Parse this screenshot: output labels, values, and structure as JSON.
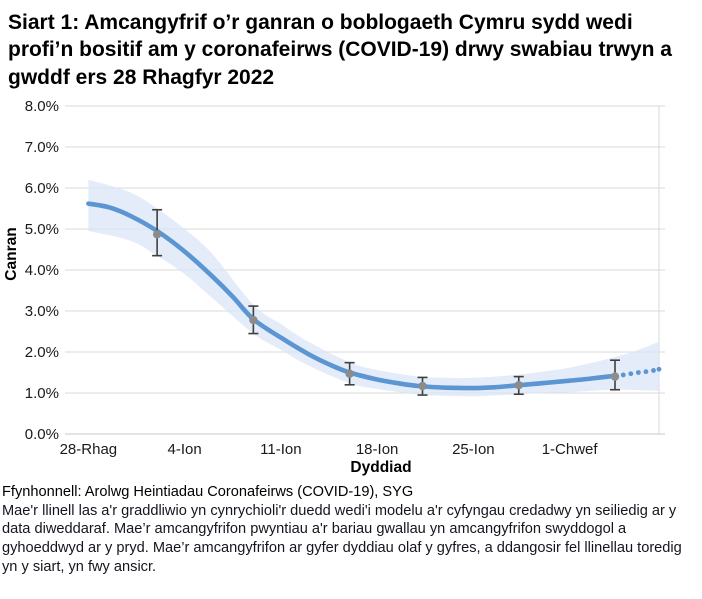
{
  "title": "Siart 1: Amcangyfrif o’r ganran o boblogaeth Cymru sydd wedi profi’n bositif am y coronafeirws (COVID-19) drwy swabiau trwyn a gwddf ers 28 Rhagfyr 2022",
  "footer": {
    "source": "Ffynhonnell: Arolwg Heintiadau Coronafeirws (COVID-19), SYG",
    "note": "Mae'r llinell las a'r graddliwio yn cynrychioli'r duedd wedi'i modelu a'r cyfyngau credadwy yn seiliedig ar y data diweddaraf. Mae’r amcangyfrifon pwyntiau a'r bariau gwallau yn amcangyfrifon swyddogol a gyhoeddwyd ar y pryd. Mae’r amcangyfrifon ar gyfer dyddiau olaf y gyfres, a ddangosir fel llinellau toredig yn y siart, yn fwy ansicr."
  },
  "chart_data": {
    "type": "line",
    "title": "Siart 1: Amcangyfrif o’r ganran o boblogaeth Cymru sydd wedi profi’n bositif am y coronafeirws (COVID-19) drwy swabiau trwyn a gwddf ers 28 Rhagfyr 2022",
    "xlabel": "Dyddiad",
    "ylabel": "Canran",
    "ylim": [
      0,
      8
    ],
    "y_tick_labels": [
      "0.0%",
      "1.0%",
      "2.0%",
      "3.0%",
      "4.0%",
      "5.0%",
      "6.0%",
      "7.0%",
      "8.0%"
    ],
    "x_tick_labels": [
      "28-Rhag",
      "4-Ion",
      "11-Ion",
      "18-Ion",
      "25-Ion",
      "1-Chwef"
    ],
    "x_tick_days": [
      0,
      7,
      14,
      21,
      28,
      35
    ],
    "x_domain_days": [
      -1.7,
      41.5
    ],
    "grid": "horizontal",
    "legend": "none",
    "trend": {
      "x_days": [
        0,
        1.5,
        3,
        5,
        7,
        9,
        10.5,
        12,
        14,
        16,
        17.5,
        19,
        21,
        22.5,
        24,
        26,
        28,
        29.5,
        31,
        33,
        35,
        36.5,
        38.3
      ],
      "values": [
        5.62,
        5.53,
        5.33,
        4.95,
        4.45,
        3.85,
        3.35,
        2.8,
        2.35,
        1.95,
        1.7,
        1.5,
        1.33,
        1.24,
        1.17,
        1.13,
        1.12,
        1.14,
        1.18,
        1.24,
        1.3,
        1.35,
        1.42
      ]
    },
    "dotted_extension": {
      "x_days": [
        38.9,
        39.45,
        40.0,
        40.55,
        41.1,
        41.5
      ],
      "values": [
        1.44,
        1.47,
        1.5,
        1.52,
        1.55,
        1.58
      ]
    },
    "credible_band": {
      "x_days": [
        0,
        3,
        5,
        7,
        9,
        12,
        14,
        16,
        19,
        21,
        24,
        26,
        28,
        31,
        33,
        35,
        38,
        40,
        41.5
      ],
      "upper": [
        6.2,
        5.9,
        5.5,
        5.0,
        4.4,
        3.15,
        2.68,
        2.25,
        1.75,
        1.56,
        1.4,
        1.37,
        1.37,
        1.44,
        1.52,
        1.62,
        1.85,
        2.05,
        2.25
      ],
      "lower": [
        4.95,
        4.72,
        4.35,
        3.9,
        3.32,
        2.45,
        2.05,
        1.67,
        1.24,
        1.1,
        0.96,
        0.93,
        0.92,
        0.96,
        1.0,
        1.02,
        1.08,
        1.07,
        1.05
      ]
    },
    "official_estimates": [
      {
        "day": 5,
        "value": 4.87,
        "lower": 4.35,
        "upper": 5.47
      },
      {
        "day": 12,
        "value": 2.78,
        "lower": 2.45,
        "upper": 3.12
      },
      {
        "day": 19,
        "value": 1.47,
        "lower": 1.2,
        "upper": 1.74
      },
      {
        "day": 24.3,
        "value": 1.17,
        "lower": 0.95,
        "upper": 1.38
      },
      {
        "day": 31.3,
        "value": 1.19,
        "lower": 0.97,
        "upper": 1.4
      },
      {
        "day": 38.3,
        "value": 1.4,
        "lower": 1.08,
        "upper": 1.8
      }
    ],
    "colors": {
      "line": "#5b95d2",
      "band": "#d9e6f5",
      "error_marker": "#8c8c8c",
      "error_whisker": "#3f3f3f",
      "gridline": "#d9d9d9",
      "axis_line": "#c9c9c9",
      "tick_text": "#1a1a1a"
    }
  }
}
